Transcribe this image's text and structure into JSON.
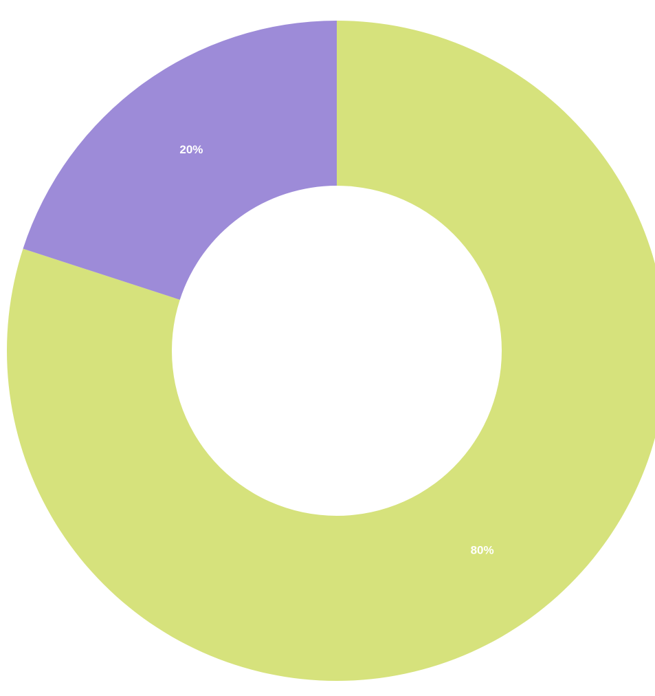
{
  "chart_data": {
    "type": "donut",
    "values": [
      80,
      20
    ],
    "value_labels": [
      "80%",
      "20%"
    ],
    "colors": [
      "#d6e27c",
      "#9d8bd8"
    ]
  }
}
